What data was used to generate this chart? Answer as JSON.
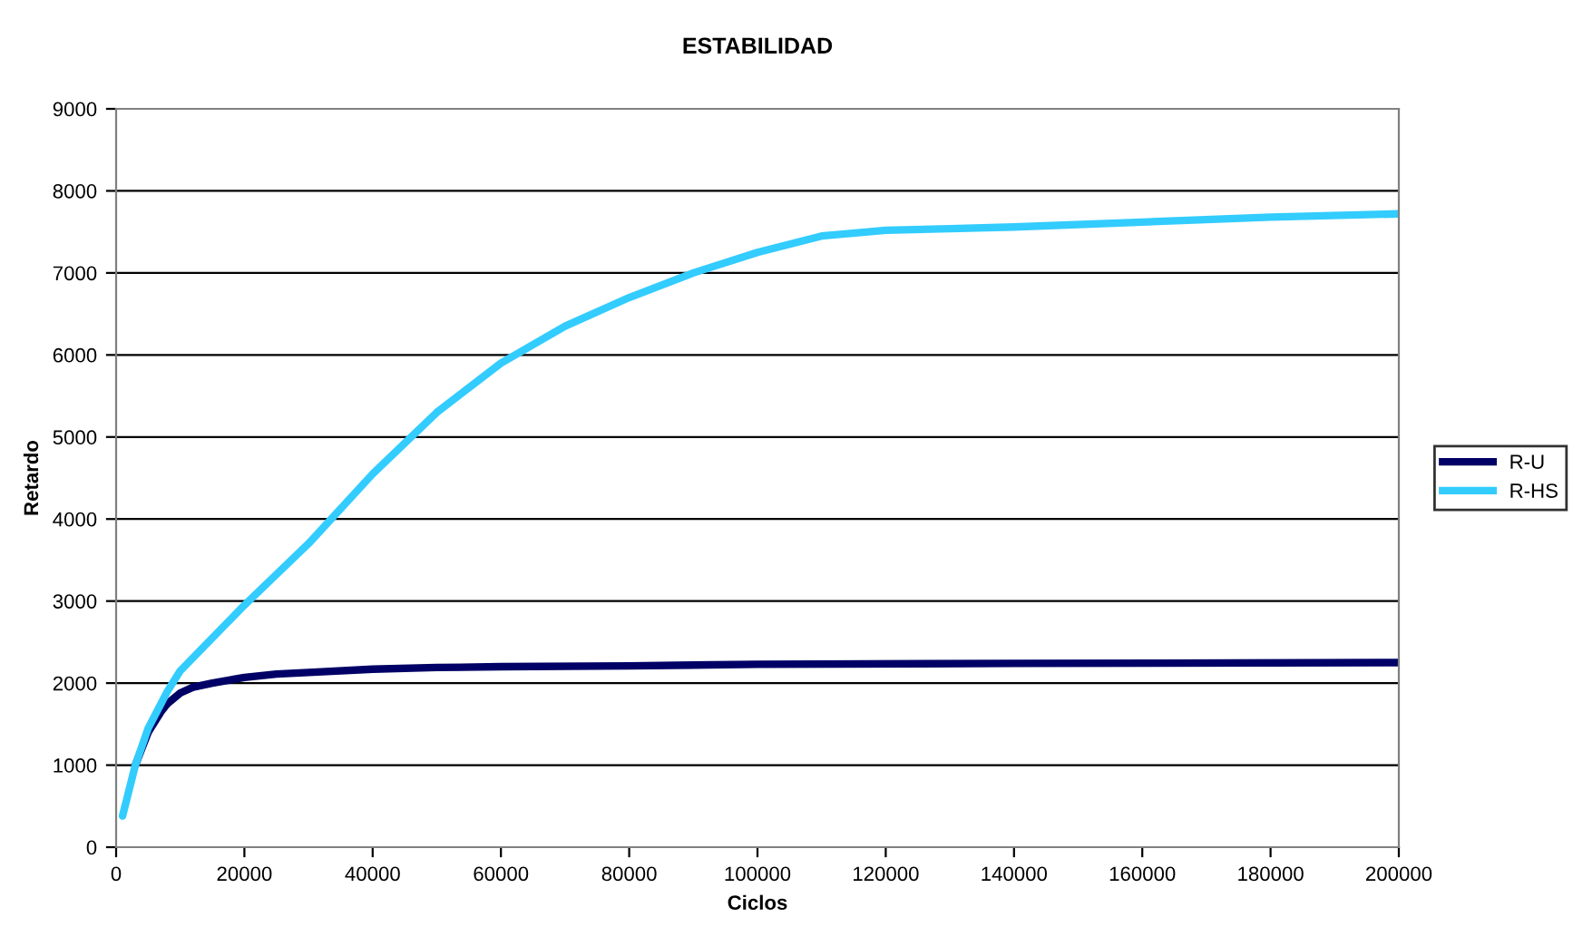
{
  "chart_data": {
    "type": "line",
    "title": "ESTABILIDAD",
    "xlabel": "Ciclos",
    "ylabel": "Retardo",
    "xlim": [
      0,
      200000
    ],
    "xticks": [
      0,
      20000,
      40000,
      60000,
      80000,
      100000,
      120000,
      140000,
      160000,
      180000,
      200000
    ],
    "ylim": [
      0,
      9000
    ],
    "yticks": [
      0,
      1000,
      2000,
      3000,
      4000,
      5000,
      6000,
      7000,
      8000,
      9000
    ],
    "grid": "y",
    "legend": "right",
    "marker": "none",
    "line_style": "solid",
    "series": [
      {
        "name": "R-U",
        "color": "#000066",
        "x": [
          3000,
          5000,
          7000,
          8000,
          10000,
          12000,
          15000,
          20000,
          25000,
          30000,
          40000,
          50000,
          60000,
          80000,
          100000,
          140000,
          200000
        ],
        "values": [
          1000,
          1400,
          1650,
          1750,
          1880,
          1950,
          2000,
          2070,
          2110,
          2130,
          2170,
          2190,
          2200,
          2210,
          2230,
          2240,
          2250
        ]
      },
      {
        "name": "R-HS",
        "color": "#33ccff",
        "x": [
          1000,
          3000,
          5000,
          7000,
          8000,
          10000,
          15000,
          20000,
          30000,
          40000,
          50000,
          60000,
          70000,
          80000,
          90000,
          100000,
          110000,
          120000,
          130000,
          140000,
          160000,
          180000,
          200000
        ],
        "values": [
          380,
          1000,
          1450,
          1750,
          1900,
          2150,
          2550,
          2950,
          3700,
          4550,
          5300,
          5900,
          6350,
          6700,
          7000,
          7250,
          7450,
          7520,
          7540,
          7560,
          7620,
          7680,
          7720
        ]
      }
    ]
  }
}
